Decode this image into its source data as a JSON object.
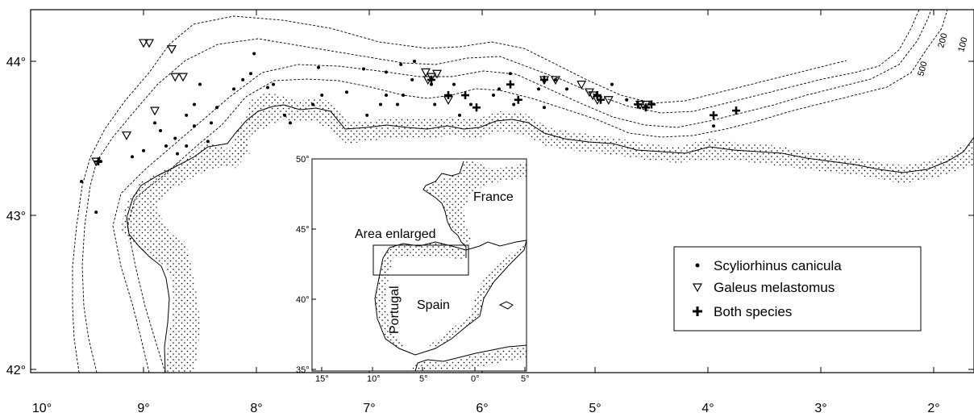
{
  "map": {
    "x_ticks": [
      "10°",
      "9°",
      "8°",
      "7°",
      "6°",
      "5°",
      "4°",
      "3°",
      "2°"
    ],
    "y_ticks": [
      "44°",
      "43°",
      "42°"
    ],
    "isobaths": [
      "500",
      "200",
      "100"
    ]
  },
  "inset": {
    "y_ticks": [
      "50°",
      "45°",
      "40°",
      "35°"
    ],
    "x_ticks": [
      "15°",
      "10°",
      "5°",
      "0°",
      "5°"
    ],
    "countries": {
      "france": "France",
      "spain": "Spain",
      "portugal": "Portugal"
    },
    "area_label": "Area enlarged"
  },
  "legend": {
    "items": [
      {
        "symbol": "dot",
        "label": "Scyliorhinus canicula"
      },
      {
        "symbol": "triangle",
        "label": "Galeus melastomus"
      },
      {
        "symbol": "cross",
        "label": "Both species"
      }
    ]
  },
  "stations": {
    "scyliorhinus_canicula": [
      [
        -9.55,
        43.22
      ],
      [
        -9.42,
        43.02
      ],
      [
        -9.38,
        43.35
      ],
      [
        -9.1,
        43.38
      ],
      [
        -9.0,
        43.42
      ],
      [
        -8.9,
        43.6
      ],
      [
        -8.85,
        43.55
      ],
      [
        -8.8,
        43.45
      ],
      [
        -8.72,
        43.5
      ],
      [
        -8.7,
        43.4
      ],
      [
        -8.62,
        43.45
      ],
      [
        -8.55,
        43.58
      ],
      [
        -8.62,
        43.65
      ],
      [
        -8.55,
        43.72
      ],
      [
        -8.5,
        43.85
      ],
      [
        -8.43,
        43.48
      ],
      [
        -8.4,
        43.6
      ],
      [
        -8.35,
        43.7
      ],
      [
        -8.2,
        43.82
      ],
      [
        -8.12,
        43.88
      ],
      [
        -8.05,
        43.92
      ],
      [
        -8.02,
        44.05
      ],
      [
        -7.9,
        43.83
      ],
      [
        -7.85,
        43.85
      ],
      [
        -7.75,
        43.65
      ],
      [
        -7.7,
        43.6
      ],
      [
        -7.5,
        43.72
      ],
      [
        -7.45,
        43.96
      ],
      [
        -7.42,
        43.78
      ],
      [
        -7.2,
        43.8
      ],
      [
        -7.05,
        43.95
      ],
      [
        -7.02,
        43.65
      ],
      [
        -6.9,
        43.72
      ],
      [
        -6.85,
        43.78
      ],
      [
        -6.85,
        43.93
      ],
      [
        -6.75,
        43.72
      ],
      [
        -6.72,
        43.98
      ],
      [
        -6.7,
        43.78
      ],
      [
        -6.62,
        43.88
      ],
      [
        -6.6,
        44.0
      ],
      [
        -6.45,
        43.85
      ],
      [
        -6.42,
        43.72
      ],
      [
        -6.25,
        43.85
      ],
      [
        -6.2,
        43.65
      ],
      [
        -6.1,
        43.72
      ],
      [
        -5.9,
        43.78
      ],
      [
        -5.85,
        43.82
      ],
      [
        -5.75,
        43.92
      ],
      [
        -5.72,
        43.72
      ],
      [
        -5.5,
        43.82
      ],
      [
        -5.45,
        43.7
      ],
      [
        -5.35,
        43.88
      ],
      [
        -5.25,
        43.82
      ],
      [
        -4.85,
        43.85
      ],
      [
        -4.72,
        43.75
      ],
      [
        -3.95,
        43.58
      ]
    ],
    "galeus_melastomus": [
      [
        -9.42,
        43.35
      ],
      [
        -9.15,
        43.52
      ],
      [
        -9.0,
        44.12
      ],
      [
        -8.95,
        44.12
      ],
      [
        -8.9,
        43.68
      ],
      [
        -8.75,
        44.08
      ],
      [
        -8.72,
        43.9
      ],
      [
        -8.65,
        43.9
      ],
      [
        -6.5,
        43.93
      ],
      [
        -6.48,
        43.88
      ],
      [
        -6.45,
        43.9
      ],
      [
        -6.4,
        43.92
      ],
      [
        -6.3,
        43.75
      ],
      [
        -5.45,
        43.88
      ],
      [
        -5.35,
        43.88
      ],
      [
        -5.12,
        43.85
      ],
      [
        -5.05,
        43.8
      ],
      [
        -5.02,
        43.78
      ],
      [
        -4.98,
        43.75
      ],
      [
        -4.88,
        43.75
      ],
      [
        -4.6,
        43.72
      ],
      [
        -4.55,
        43.72
      ]
    ],
    "both_species": [
      [
        -9.4,
        43.35
      ],
      [
        -6.45,
        43.88
      ],
      [
        -6.3,
        43.78
      ],
      [
        -6.15,
        43.78
      ],
      [
        -6.05,
        43.7
      ],
      [
        -5.75,
        43.85
      ],
      [
        -5.68,
        43.75
      ],
      [
        -5.45,
        43.88
      ],
      [
        -4.98,
        43.78
      ],
      [
        -4.95,
        43.75
      ],
      [
        -4.62,
        43.72
      ],
      [
        -4.55,
        43.7
      ],
      [
        -4.5,
        43.72
      ],
      [
        -3.95,
        43.65
      ],
      [
        -3.75,
        43.68
      ]
    ]
  }
}
